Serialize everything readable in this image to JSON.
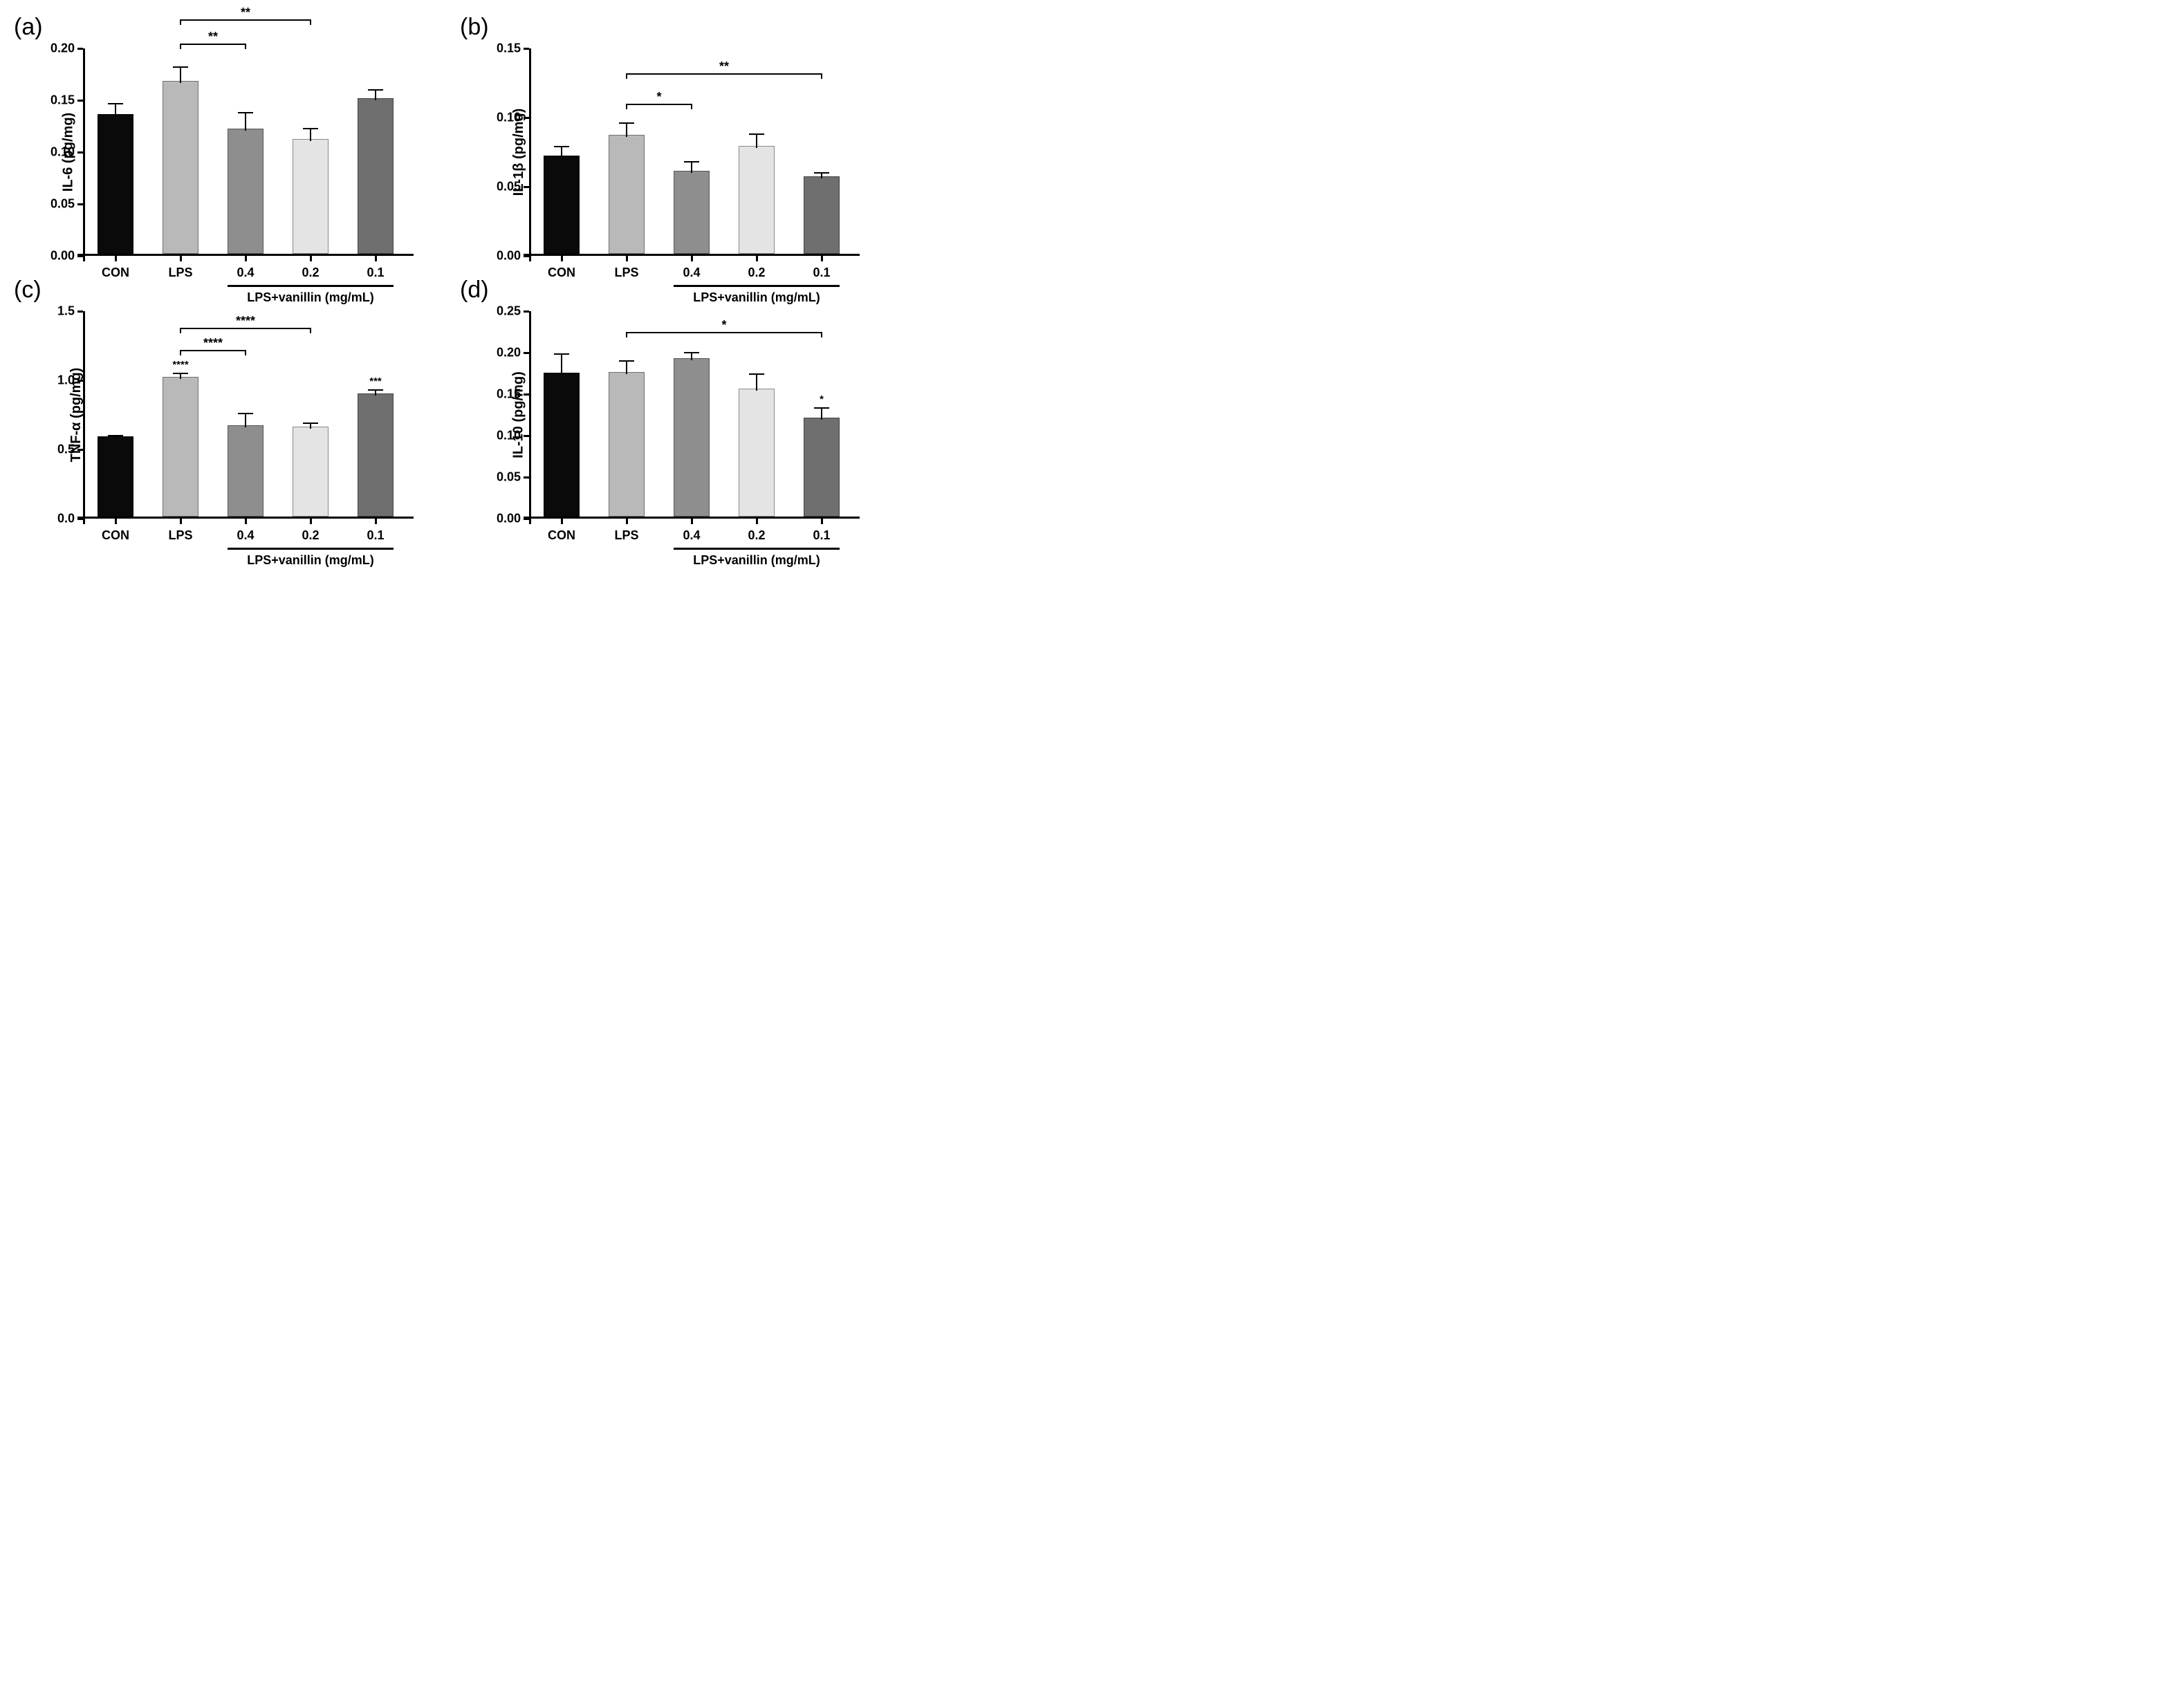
{
  "panels": [
    {
      "tag": "(a)",
      "ylabel": "IL-6 (pg/mg)",
      "ymax": 0.2,
      "ystep": 0.05,
      "decimals": 2,
      "sub_axis_label": "LPS+vanillin (mg/mL)",
      "categories": [
        "CON",
        "LPS",
        "0.4",
        "0.2",
        "0.1"
      ],
      "values": [
        0.135,
        0.167,
        0.121,
        0.111,
        0.15
      ],
      "errors": [
        0.012,
        0.015,
        0.017,
        0.012,
        0.01
      ],
      "bar_colors": [
        "#0a0a0a",
        "#b9b9b9",
        "#8e8e8e",
        "#e4e4e4",
        "#6f6f6f"
      ],
      "bar_width": 0.55,
      "on_bar_sig": [
        "",
        "",
        "",
        "",
        ""
      ],
      "sig_brackets": [
        {
          "from": 1,
          "to": 2,
          "y": 0.205,
          "label": "**"
        },
        {
          "from": 1,
          "to": 3,
          "y": 0.228,
          "label": "**"
        }
      ]
    },
    {
      "tag": "(b)",
      "ylabel": "IL-1β (pg/mg)",
      "ymax": 0.15,
      "ystep": 0.05,
      "decimals": 2,
      "sub_axis_label": "LPS+vanillin (mg/mL)",
      "categories": [
        "CON",
        "LPS",
        "0.4",
        "0.2",
        "0.1"
      ],
      "values": [
        0.071,
        0.086,
        0.06,
        0.078,
        0.056
      ],
      "errors": [
        0.008,
        0.01,
        0.008,
        0.01,
        0.004
      ],
      "bar_colors": [
        "#0a0a0a",
        "#b9b9b9",
        "#8e8e8e",
        "#e4e4e4",
        "#6f6f6f"
      ],
      "bar_width": 0.55,
      "on_bar_sig": [
        "",
        "",
        "",
        "",
        ""
      ],
      "sig_brackets": [
        {
          "from": 1,
          "to": 2,
          "y": 0.11,
          "label": "*"
        },
        {
          "from": 1,
          "to": 4,
          "y": 0.132,
          "label": "**"
        }
      ]
    },
    {
      "tag": "(c)",
      "ylabel": "TNF-α (pg/mg)",
      "ymax": 1.5,
      "ystep": 0.5,
      "decimals": 1,
      "sub_axis_label": "LPS+vanillin (mg/mL)",
      "categories": [
        "CON",
        "LPS",
        "0.4",
        "0.2",
        "0.1"
      ],
      "values": [
        0.58,
        1.01,
        0.66,
        0.65,
        0.89
      ],
      "errors": [
        0.02,
        0.04,
        0.1,
        0.04,
        0.04
      ],
      "bar_colors": [
        "#0a0a0a",
        "#b9b9b9",
        "#8e8e8e",
        "#e4e4e4",
        "#6f6f6f"
      ],
      "bar_width": 0.55,
      "on_bar_sig": [
        "",
        "****",
        "",
        "",
        "***"
      ],
      "sig_brackets": [
        {
          "from": 1,
          "to": 2,
          "y": 1.22,
          "label": "****"
        },
        {
          "from": 1,
          "to": 3,
          "y": 1.38,
          "label": "****"
        }
      ]
    },
    {
      "tag": "(d)",
      "ylabel": "IL-10 (pg/mg)",
      "ymax": 0.25,
      "ystep": 0.05,
      "decimals": 2,
      "sub_axis_label": "LPS+vanillin (mg/mL)",
      "categories": [
        "CON",
        "LPS",
        "0.4",
        "0.2",
        "0.1"
      ],
      "values": [
        0.173,
        0.174,
        0.191,
        0.154,
        0.119
      ],
      "errors": [
        0.025,
        0.016,
        0.009,
        0.02,
        0.014
      ],
      "bar_colors": [
        "#0a0a0a",
        "#b9b9b9",
        "#8e8e8e",
        "#e4e4e4",
        "#6f6f6f"
      ],
      "bar_width": 0.55,
      "on_bar_sig": [
        "",
        "",
        "",
        "",
        "*"
      ],
      "sig_brackets": [
        {
          "from": 1,
          "to": 4,
          "y": 0.225,
          "label": "*"
        }
      ]
    }
  ]
}
